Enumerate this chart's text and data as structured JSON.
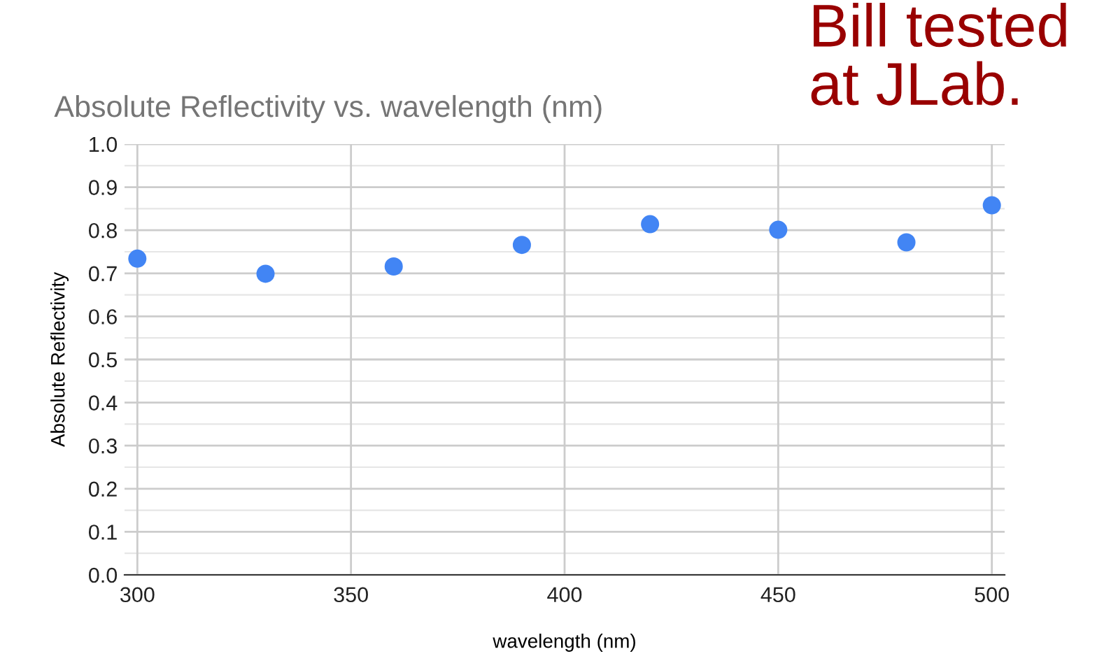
{
  "chart_data": {
    "type": "scatter",
    "title": "Absolute Reflectivity vs. wavelength (nm)",
    "xlabel": "wavelength (nm)",
    "ylabel": "Absolute Reflectivity",
    "x": [
      300,
      330,
      360,
      390,
      420,
      450,
      480,
      500
    ],
    "series": [
      {
        "color": "#4285f4",
        "values": [
          0.734,
          0.699,
          0.716,
          0.766,
          0.814,
          0.801,
          0.772,
          0.858
        ]
      }
    ],
    "xlim": [
      297,
      503
    ],
    "xticks": [
      300,
      350,
      400,
      450,
      500
    ],
    "ylim": [
      0,
      1.0
    ],
    "yticks": [
      {
        "value": 0,
        "label": "0.0"
      },
      0.1,
      0.2,
      0.3,
      0.4,
      0.5,
      0.6,
      0.7,
      0.8,
      0.9,
      {
        "value": 1.0,
        "label": "1.0"
      }
    ],
    "grid": true,
    "marker": "circle",
    "legend": false,
    "annotations": [
      "Bill tested at JLab."
    ]
  }
}
